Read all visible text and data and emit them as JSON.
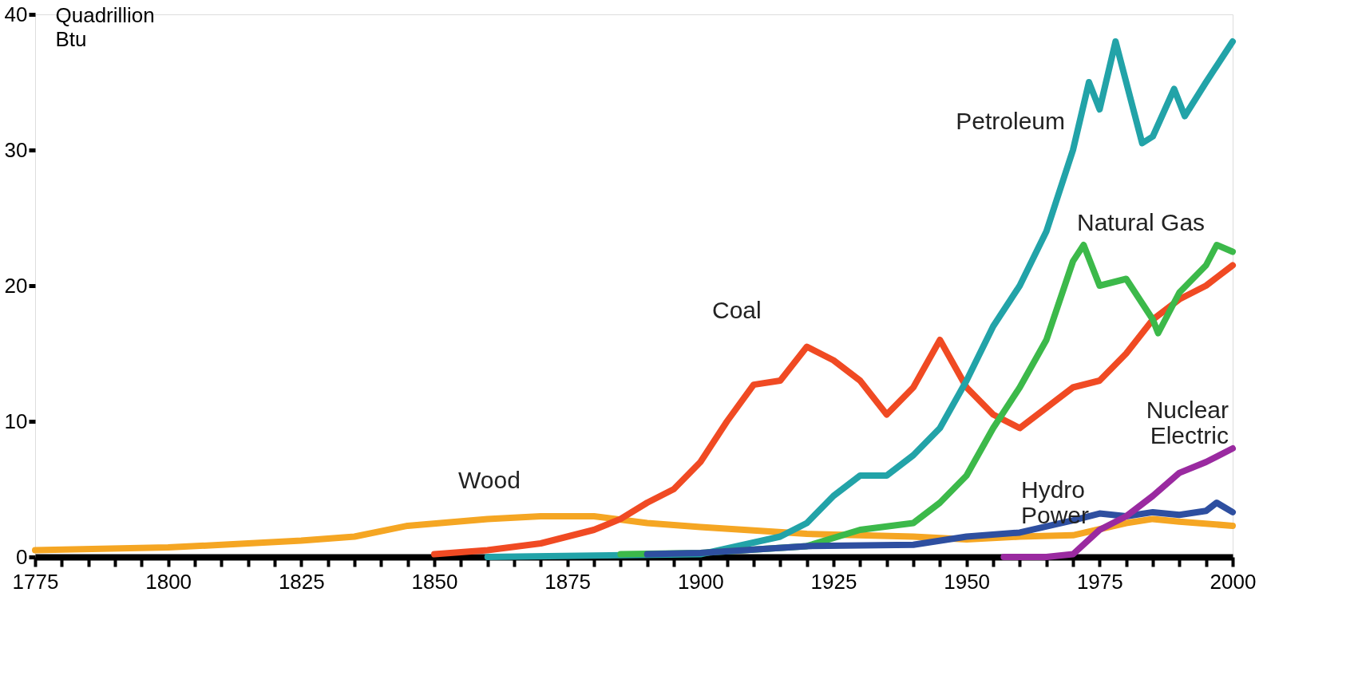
{
  "chart_data": {
    "type": "line",
    "ylabel": "Quadrillion Btu",
    "xlim": [
      1775,
      2000
    ],
    "ylim": [
      0,
      40
    ],
    "yticks": [
      0,
      10,
      20,
      30,
      40
    ],
    "xticks": [
      1775,
      {
        "value": 1780,
        "label": null
      },
      {
        "value": 1785,
        "label": null
      },
      {
        "value": 1790,
        "label": null
      },
      {
        "value": 1795,
        "label": null
      },
      1800,
      {
        "value": 1805,
        "label": null
      },
      {
        "value": 1810,
        "label": null
      },
      {
        "value": 1815,
        "label": null
      },
      {
        "value": 1820,
        "label": null
      },
      1825,
      {
        "value": 1830,
        "label": null
      },
      {
        "value": 1835,
        "label": null
      },
      {
        "value": 1840,
        "label": null
      },
      {
        "value": 1845,
        "label": null
      },
      1850,
      {
        "value": 1855,
        "label": null
      },
      {
        "value": 1860,
        "label": null
      },
      {
        "value": 1865,
        "label": null
      },
      {
        "value": 1870,
        "label": null
      },
      1875,
      {
        "value": 1880,
        "label": null
      },
      {
        "value": 1885,
        "label": null
      },
      {
        "value": 1890,
        "label": null
      },
      {
        "value": 1895,
        "label": null
      },
      1900,
      {
        "value": 1905,
        "label": null
      },
      {
        "value": 1910,
        "label": null
      },
      {
        "value": 1915,
        "label": null
      },
      {
        "value": 1920,
        "label": null
      },
      1925,
      {
        "value": 1930,
        "label": null
      },
      {
        "value": 1935,
        "label": null
      },
      {
        "value": 1940,
        "label": null
      },
      {
        "value": 1945,
        "label": null
      },
      1950,
      {
        "value": 1955,
        "label": null
      },
      {
        "value": 1960,
        "label": null
      },
      {
        "value": 1965,
        "label": null
      },
      {
        "value": 1970,
        "label": null
      },
      1975,
      {
        "value": 1980,
        "label": null
      },
      {
        "value": 1985,
        "label": null
      },
      {
        "value": 1990,
        "label": null
      },
      {
        "value": 1995,
        "label": null
      },
      2000
    ],
    "grid": false,
    "legend": false,
    "marker": "none",
    "line_style": "solid",
    "series": [
      {
        "name": "Wood",
        "color": "#f5a623",
        "x": [
          1775,
          1800,
          1825,
          1835,
          1845,
          1860,
          1870,
          1880,
          1890,
          1900,
          1920,
          1940,
          1950,
          1960,
          1970,
          1980,
          1985,
          1990,
          2000
        ],
        "values": [
          0.5,
          0.7,
          1.2,
          1.5,
          2.3,
          2.8,
          3,
          3,
          2.5,
          2.2,
          1.7,
          1.5,
          1.3,
          1.5,
          1.6,
          2.5,
          2.8,
          2.6,
          2.3
        ]
      },
      {
        "name": "Coal",
        "color": "#f04a23",
        "x": [
          1850,
          1860,
          1870,
          1880,
          1885,
          1890,
          1895,
          1900,
          1905,
          1910,
          1915,
          1920,
          1925,
          1930,
          1935,
          1940,
          1945,
          1950,
          1955,
          1960,
          1965,
          1970,
          1975,
          1980,
          1985,
          1990,
          1995,
          2000
        ],
        "values": [
          0.2,
          0.5,
          1,
          2,
          2.8,
          4,
          5,
          7,
          10,
          12.7,
          13,
          15.5,
          14.5,
          13,
          10.5,
          12.5,
          16,
          12.5,
          10.5,
          9.5,
          11,
          12.5,
          13,
          15,
          17.5,
          19,
          20,
          21.5
        ]
      },
      {
        "name": "Petroleum",
        "color": "#22a3a8",
        "x": [
          1860,
          1880,
          1900,
          1915,
          1920,
          1925,
          1930,
          1935,
          1940,
          1945,
          1950,
          1955,
          1960,
          1965,
          1970,
          1973,
          1975,
          1978,
          1983,
          1985,
          1989,
          1991,
          1995,
          2000
        ],
        "values": [
          0,
          0.1,
          0.2,
          1.5,
          2.5,
          4.5,
          6,
          6,
          7.5,
          9.5,
          13,
          17,
          20,
          24,
          30,
          35,
          33,
          38,
          30.5,
          31,
          34.5,
          32.5,
          35,
          38
        ]
      },
      {
        "name": "Natural Gas",
        "color": "#3cb94a",
        "x": [
          1885,
          1900,
          1920,
          1930,
          1940,
          1945,
          1950,
          1955,
          1960,
          1965,
          1970,
          1972,
          1975,
          1980,
          1985,
          1986,
          1990,
          1995,
          1997,
          2000
        ],
        "values": [
          0.2,
          0.3,
          0.8,
          2,
          2.5,
          4,
          6,
          9.5,
          12.5,
          16,
          21.8,
          23,
          20,
          20.5,
          17.5,
          16.5,
          19.5,
          21.5,
          23,
          22.5
        ]
      },
      {
        "name": "Hydro Power",
        "color": "#2e4fa0",
        "x": [
          1890,
          1900,
          1920,
          1940,
          1950,
          1960,
          1970,
          1975,
          1980,
          1985,
          1990,
          1995,
          1997,
          2000
        ],
        "values": [
          0.2,
          0.3,
          0.8,
          0.9,
          1.5,
          1.8,
          2.7,
          3.2,
          3,
          3.3,
          3.1,
          3.4,
          4,
          3.3
        ]
      },
      {
        "name": "Nuclear Electric",
        "color": "#9a2aa0",
        "x": [
          1957,
          1965,
          1970,
          1975,
          1980,
          1985,
          1990,
          1995,
          2000
        ],
        "values": [
          0,
          0,
          0.2,
          2,
          3,
          4.5,
          6.2,
          7,
          8
        ]
      }
    ]
  }
}
